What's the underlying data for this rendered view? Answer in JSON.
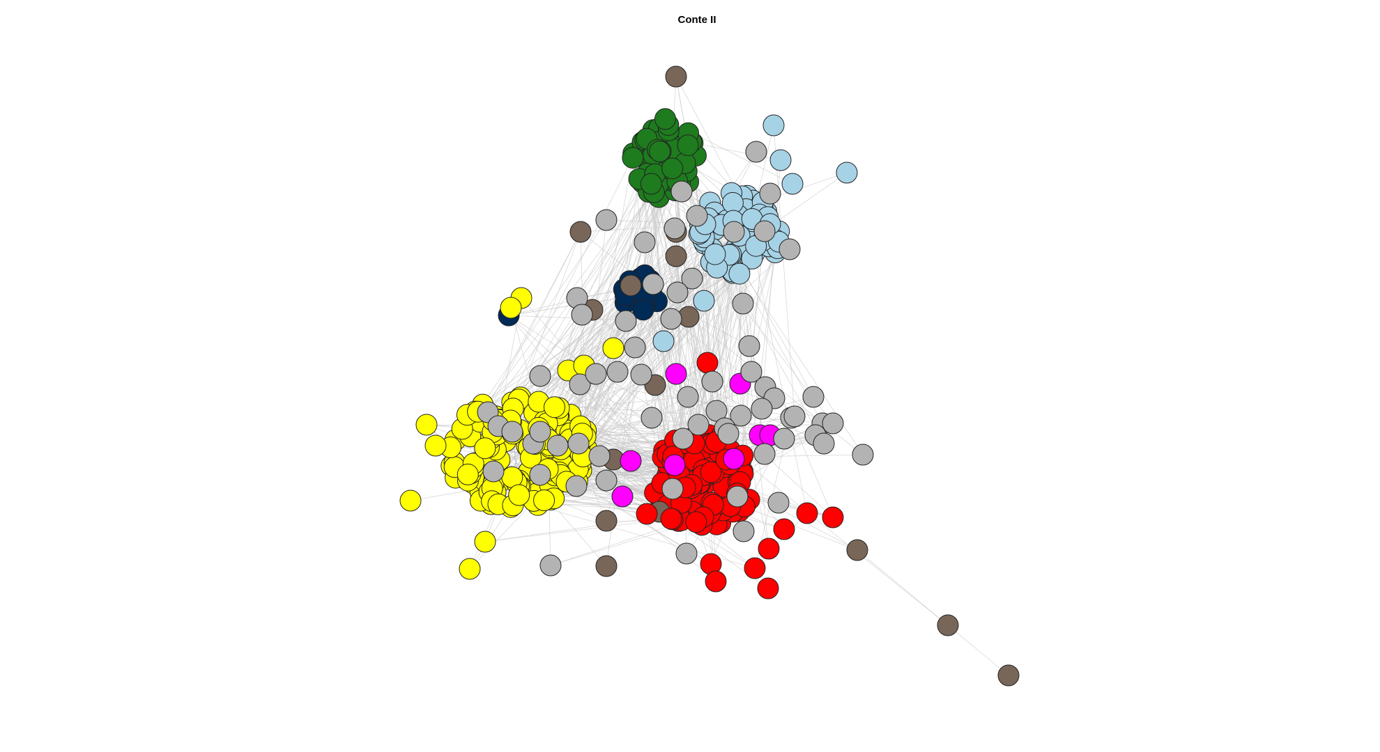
{
  "title": "Conte II",
  "colors": {
    "green": "#1e7b1e",
    "light_blue": "#a6d2e6",
    "gray": "#b3b3b3",
    "brown": "#786658",
    "navy": "#002b57",
    "yellow": "#ffff00",
    "red": "#ff0000",
    "magenta": "#ff00ff",
    "node_outline": "#222222",
    "edge": "#c8c8c8"
  },
  "communities": [
    {
      "name": "green",
      "color": "#1e7b1e"
    },
    {
      "name": "light-blue",
      "color": "#a6d2e6"
    },
    {
      "name": "navy",
      "color": "#002b57"
    },
    {
      "name": "yellow",
      "color": "#ffff00"
    },
    {
      "name": "red",
      "color": "#ff0000"
    },
    {
      "name": "magenta",
      "color": "#ff00ff"
    },
    {
      "name": "brown",
      "color": "#786658"
    },
    {
      "name": "gray",
      "color": "#b3b3b3"
    }
  ]
}
